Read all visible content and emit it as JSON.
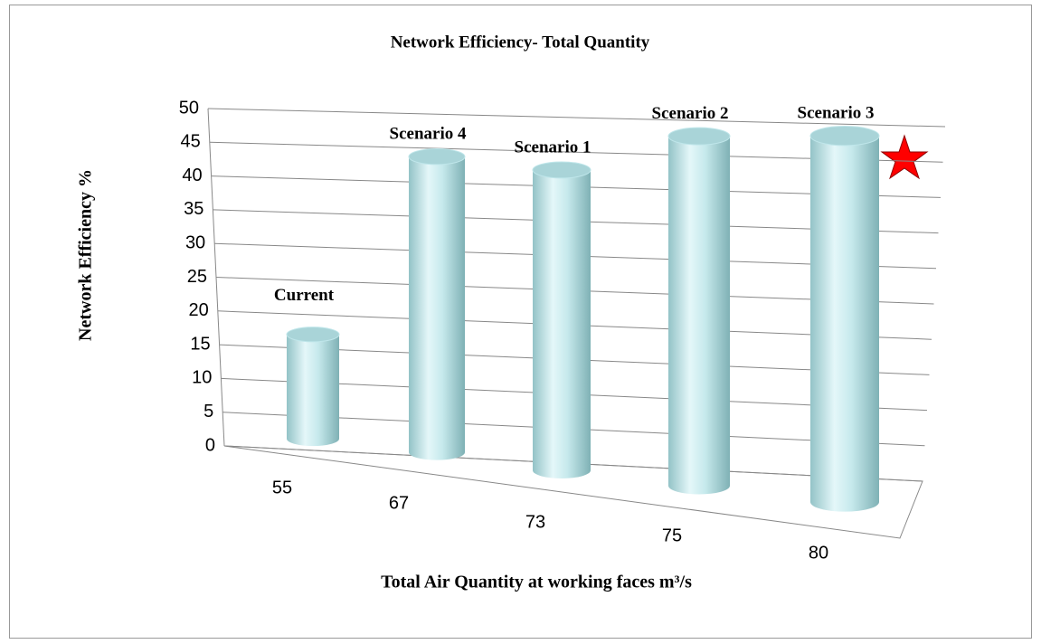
{
  "chart_data": {
    "type": "bar3d",
    "title": "Network Efficiency- Total Quantity",
    "y_label": "Network Efficiency %",
    "x_label": "Total Air Quantity at working faces m³/s",
    "categories": [
      "55",
      "67",
      "73",
      "75",
      "80"
    ],
    "bar_labels": [
      "Current",
      "Scenario 4",
      "Scenario 1",
      "Scenario 2",
      "Scenario 3"
    ],
    "values": [
      16,
      43,
      41,
      46,
      46
    ],
    "color": "#bfe6ea",
    "ylim": [
      0,
      50
    ],
    "yticks": [
      0,
      5,
      10,
      15,
      20,
      25,
      30,
      35,
      40,
      45,
      50
    ],
    "grid": true
  }
}
